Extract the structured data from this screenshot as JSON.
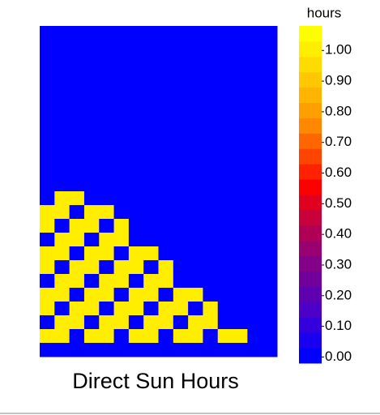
{
  "chart_data": {
    "type": "heatmap",
    "title": "Direct Sun Hours",
    "colorbar_title": "hours",
    "clim": [
      -0.02,
      1.08
    ],
    "colors": [
      "#0000ff",
      "#1a00f0",
      "#3300dd",
      "#4d00c8",
      "#5f00b0",
      "#72009a",
      "#850088",
      "#990070",
      "#b00055",
      "#c8003c",
      "#e00020",
      "#ff0000",
      "#ff2200",
      "#ff4400",
      "#ff6600",
      "#ff8800",
      "#ffa000",
      "#ffb400",
      "#ffc800",
      "#ffdc00",
      "#ffee00",
      "#ffff00"
    ],
    "cticks": [
      {
        "value": 0,
        "label": "0.00"
      },
      {
        "value": 0.1,
        "label": "0.10"
      },
      {
        "value": 0.2,
        "label": "0.20"
      },
      {
        "value": 0.3,
        "label": "0.30"
      },
      {
        "value": 0.4,
        "label": "0.40"
      },
      {
        "value": 0.5,
        "label": "0.50"
      },
      {
        "value": 0.6,
        "label": "0.60"
      },
      {
        "value": 0.7,
        "label": "0.70"
      },
      {
        "value": 0.8,
        "label": "0.80"
      },
      {
        "value": 0.9,
        "label": "0.90"
      },
      {
        "value": 1,
        "label": "1.00"
      }
    ],
    "z": [
      [
        0,
        0,
        0,
        0,
        0,
        0,
        0,
        0,
        0,
        0,
        0,
        0,
        0,
        0,
        0,
        0
      ],
      [
        0,
        0,
        0,
        0,
        0,
        0,
        0,
        0,
        0,
        0,
        0,
        0,
        0,
        0,
        0,
        0
      ],
      [
        0,
        0,
        0,
        0,
        0,
        0,
        0,
        0,
        0,
        0,
        0,
        0,
        0,
        0,
        0,
        0
      ],
      [
        0,
        0,
        0,
        0,
        0,
        0,
        0,
        0,
        0,
        0,
        0,
        0,
        0,
        0,
        0,
        0
      ],
      [
        0,
        0,
        0,
        0,
        0,
        0,
        0,
        0,
        0,
        0,
        0,
        0,
        0,
        0,
        0,
        0
      ],
      [
        0,
        0,
        0,
        0,
        0,
        0,
        0,
        0,
        0,
        0,
        0,
        0,
        0,
        0,
        0,
        0
      ],
      [
        0,
        0,
        0,
        0,
        0,
        0,
        0,
        0,
        0,
        0,
        0,
        0,
        0,
        0,
        0,
        0
      ],
      [
        0,
        0,
        0,
        0,
        0,
        0,
        0,
        0,
        0,
        0,
        0,
        0,
        0,
        0,
        0,
        0
      ],
      [
        0,
        0,
        0,
        0,
        0,
        0,
        0,
        0,
        0,
        0,
        0,
        0,
        0,
        0,
        0,
        0
      ],
      [
        0,
        0,
        0,
        0,
        0,
        0,
        0,
        0,
        0,
        0,
        0,
        0,
        0,
        0,
        0,
        0
      ],
      [
        0,
        0,
        0,
        0,
        0,
        0,
        0,
        0,
        0,
        0,
        0,
        0,
        0,
        0,
        0,
        0
      ],
      [
        0,
        0,
        0,
        0,
        0,
        0,
        0,
        0,
        0,
        0,
        0,
        0,
        0,
        0,
        0,
        0
      ],
      [
        0,
        1,
        1,
        0,
        0,
        0,
        0,
        0,
        0,
        0,
        0,
        0,
        0,
        0,
        0,
        0
      ],
      [
        1,
        1,
        0,
        1,
        1,
        0,
        0,
        0,
        0,
        0,
        0,
        0,
        0,
        0,
        0,
        0
      ],
      [
        1,
        0,
        1,
        1,
        0,
        1,
        0,
        0,
        0,
        0,
        0,
        0,
        0,
        0,
        0,
        0
      ],
      [
        0,
        1,
        1,
        0,
        1,
        1,
        0,
        0,
        0,
        0,
        0,
        0,
        0,
        0,
        0,
        0
      ],
      [
        1,
        1,
        0,
        1,
        1,
        0,
        1,
        1,
        0,
        0,
        0,
        0,
        0,
        0,
        0,
        0
      ],
      [
        1,
        0,
        1,
        1,
        0,
        1,
        1,
        0,
        1,
        0,
        0,
        0,
        0,
        0,
        0,
        0
      ],
      [
        0,
        1,
        1,
        0,
        1,
        1,
        0,
        1,
        1,
        0,
        0,
        0,
        0,
        0,
        0,
        0
      ],
      [
        1,
        1,
        0,
        1,
        1,
        0,
        1,
        1,
        0,
        1,
        1,
        0,
        0,
        0,
        0,
        0
      ],
      [
        1,
        0,
        1,
        1,
        0,
        1,
        1,
        0,
        1,
        1,
        0,
        1,
        0,
        0,
        0,
        0
      ],
      [
        0,
        1,
        1,
        0,
        1,
        1,
        0,
        1,
        1,
        0,
        1,
        1,
        0,
        0,
        0,
        0
      ],
      [
        1,
        1,
        0,
        1,
        1,
        0,
        1,
        1,
        0,
        1,
        1,
        0,
        1,
        1,
        0,
        0
      ],
      [
        0,
        0,
        0,
        0,
        0,
        0,
        0,
        0,
        0,
        0,
        0,
        0,
        0,
        0,
        0,
        0
      ]
    ]
  }
}
